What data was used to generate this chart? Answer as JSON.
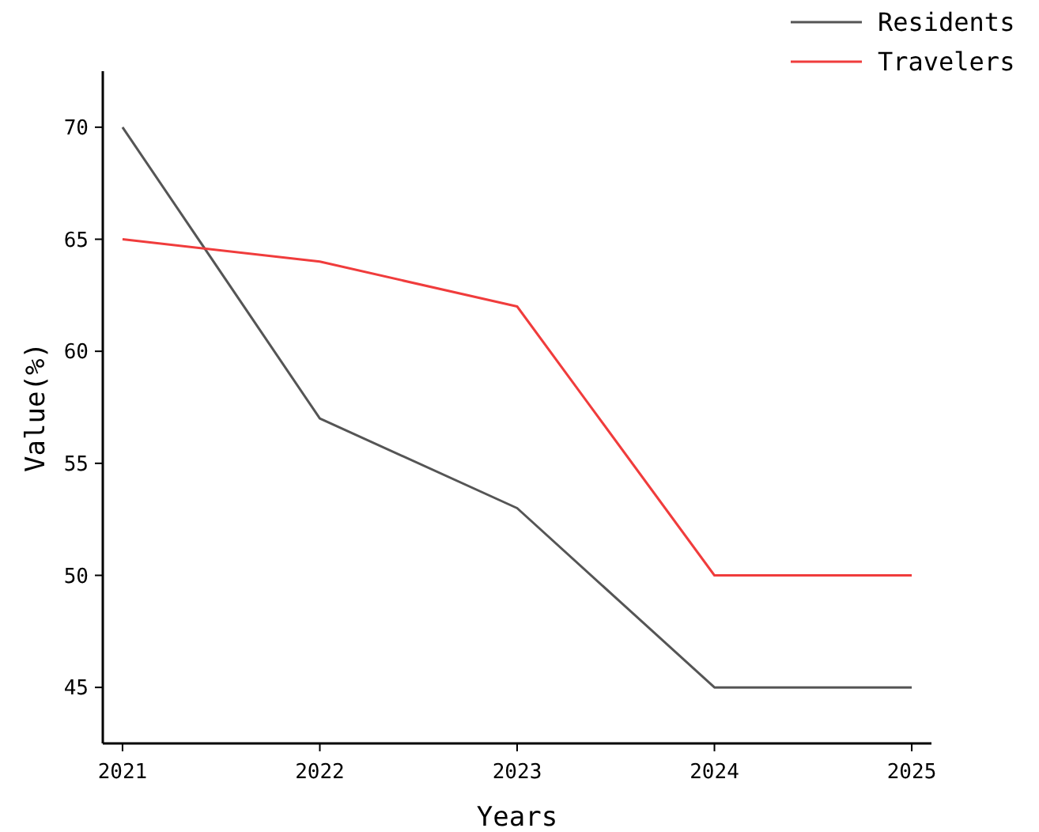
{
  "chart_data": {
    "type": "line",
    "xlabel": "Years",
    "ylabel": "Value(%)",
    "x": [
      2021,
      2022,
      2023,
      2024,
      2025
    ],
    "series": [
      {
        "name": "Residents",
        "color": "#555555",
        "values": [
          70,
          57,
          53,
          45,
          45
        ]
      },
      {
        "name": "Travelers",
        "color": "#f03c3c",
        "values": [
          65,
          64,
          62,
          50,
          50
        ]
      }
    ],
    "xlim": [
      2020.9,
      2025.1
    ],
    "xticks": [
      2021,
      2022,
      2023,
      2024,
      2025
    ],
    "ylim": [
      42.5,
      72.5
    ],
    "yticks": [
      45,
      50,
      55,
      60,
      65,
      70
    ],
    "grid": false,
    "legend": "top right",
    "marker": "none",
    "line_style": "solid"
  }
}
